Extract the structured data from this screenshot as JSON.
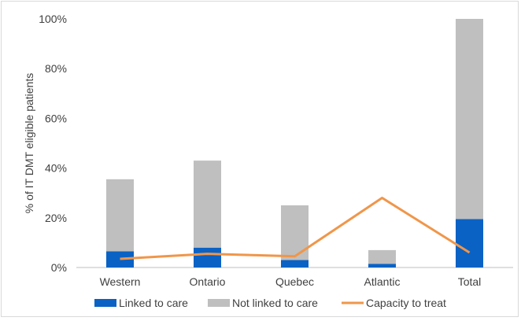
{
  "chart_data": {
    "type": "bar",
    "stacked": true,
    "ylabel": "% of IT DMT eligible patients",
    "xlabel": "",
    "ylim": [
      0,
      100
    ],
    "yticks": [
      "0%",
      "20%",
      "40%",
      "60%",
      "80%",
      "100%"
    ],
    "categories": [
      "Western",
      "Ontario",
      "Quebec",
      "Atlantic",
      "Total"
    ],
    "series": [
      {
        "name": "Linked to care",
        "kind": "bar",
        "color": "#0a62c4",
        "values": [
          6.5,
          8,
          3,
          1.5,
          19.5
        ]
      },
      {
        "name": "Not linked to care",
        "kind": "bar",
        "color": "#bfbfbf",
        "values": [
          29,
          35,
          22,
          5.5,
          80.5
        ]
      },
      {
        "name": "Capacity to treat",
        "kind": "line",
        "color": "#f0964a",
        "values": [
          3.5,
          5.5,
          4.5,
          28,
          6
        ]
      }
    ],
    "legend_position": "bottom",
    "grid": false
  }
}
